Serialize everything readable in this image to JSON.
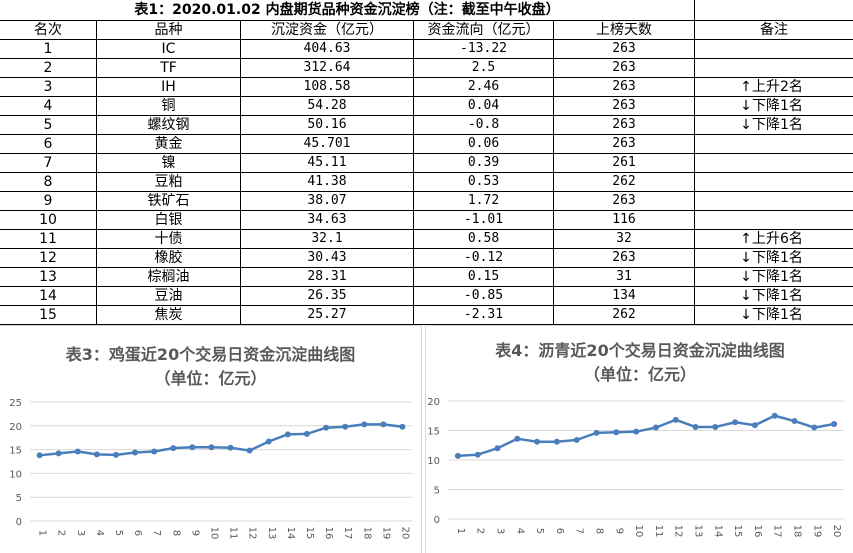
{
  "table": {
    "title": "表1：2020.01.02 内盘期货品种资金沉淀榜（注：截至中午收盘）",
    "headers": [
      "名次",
      "品种",
      "沉淀资金（亿元）",
      "资金流向（亿元）",
      "上榜天数",
      "备注"
    ],
    "rows": [
      {
        "rank": "1",
        "name": "IC",
        "fund": "404.63",
        "flow": "-13.22",
        "days": "263",
        "arrow": "",
        "note": ""
      },
      {
        "rank": "2",
        "name": "TF",
        "fund": "312.64",
        "flow": "2.5",
        "days": "263",
        "arrow": "",
        "note": ""
      },
      {
        "rank": "3",
        "name": "IH",
        "fund": "108.58",
        "flow": "2.46",
        "days": "263",
        "arrow": "↑",
        "note": "上升2名"
      },
      {
        "rank": "4",
        "name": "铜",
        "fund": "54.28",
        "flow": "0.04",
        "days": "263",
        "arrow": "↓",
        "note": "下降1名"
      },
      {
        "rank": "5",
        "name": "螺纹钢",
        "fund": "50.16",
        "flow": "-0.8",
        "days": "263",
        "arrow": "↓",
        "note": "下降1名"
      },
      {
        "rank": "6",
        "name": "黄金",
        "fund": "45.701",
        "flow": "0.06",
        "days": "263",
        "arrow": "",
        "note": ""
      },
      {
        "rank": "7",
        "name": "镍",
        "fund": "45.11",
        "flow": "0.39",
        "days": "261",
        "arrow": "",
        "note": ""
      },
      {
        "rank": "8",
        "name": "豆粕",
        "fund": "41.38",
        "flow": "0.53",
        "days": "262",
        "arrow": "",
        "note": ""
      },
      {
        "rank": "9",
        "name": "铁矿石",
        "fund": "38.07",
        "flow": "1.72",
        "days": "263",
        "arrow": "",
        "note": ""
      },
      {
        "rank": "10",
        "name": "白银",
        "fund": "34.63",
        "flow": "-1.01",
        "days": "116",
        "arrow": "",
        "note": ""
      },
      {
        "rank": "11",
        "name": "十债",
        "fund": "32.1",
        "flow": "0.58",
        "days": "32",
        "arrow": "↑",
        "note": "上升6名"
      },
      {
        "rank": "12",
        "name": "橡胶",
        "fund": "30.43",
        "flow": "-0.12",
        "days": "263",
        "arrow": "↓",
        "note": "下降1名"
      },
      {
        "rank": "13",
        "name": "棕榈油",
        "fund": "28.31",
        "flow": "0.15",
        "days": "31",
        "arrow": "↓",
        "note": "下降1名"
      },
      {
        "rank": "14",
        "name": "豆油",
        "fund": "26.35",
        "flow": "-0.85",
        "days": "134",
        "arrow": "↓",
        "note": "下降1名"
      },
      {
        "rank": "15",
        "name": "焦炭",
        "fund": "25.27",
        "flow": "-2.31",
        "days": "262",
        "arrow": "↓",
        "note": "下降1名"
      }
    ]
  },
  "colors": {
    "line": "#4a7ebb",
    "grid": "#d9d9d9",
    "text": "#595959"
  },
  "chart_data": [
    {
      "type": "line",
      "title": "表3：鸡蛋近20个交易日资金沉淀曲线图",
      "subtitle": "（单位：亿元）",
      "x": [
        1,
        2,
        3,
        4,
        5,
        6,
        7,
        8,
        9,
        10,
        11,
        12,
        13,
        14,
        15,
        16,
        17,
        18,
        19,
        20
      ],
      "y": [
        13.8,
        14.2,
        14.6,
        14.0,
        13.9,
        14.4,
        14.6,
        15.3,
        15.5,
        15.5,
        15.4,
        14.8,
        16.7,
        18.2,
        18.3,
        19.6,
        19.8,
        20.3,
        20.3,
        19.8
      ],
      "yticks": [
        0,
        5,
        10,
        15,
        20,
        25
      ],
      "ylim": [
        0,
        25
      ],
      "grid": true
    },
    {
      "type": "line",
      "title": "表4：沥青近20个交易日资金沉淀曲线图",
      "subtitle": "（单位：亿元）",
      "x": [
        1,
        2,
        3,
        4,
        5,
        6,
        7,
        8,
        9,
        10,
        11,
        12,
        13,
        14,
        15,
        16,
        17,
        18,
        19,
        20
      ],
      "y": [
        10.7,
        10.9,
        12.0,
        13.6,
        13.1,
        13.1,
        13.4,
        14.6,
        14.7,
        14.8,
        15.5,
        16.8,
        15.6,
        15.6,
        16.4,
        15.9,
        17.5,
        16.6,
        15.5,
        16.1
      ],
      "yticks": [
        0,
        5,
        10,
        15,
        20
      ],
      "ylim": [
        0,
        20
      ],
      "grid": true
    }
  ]
}
